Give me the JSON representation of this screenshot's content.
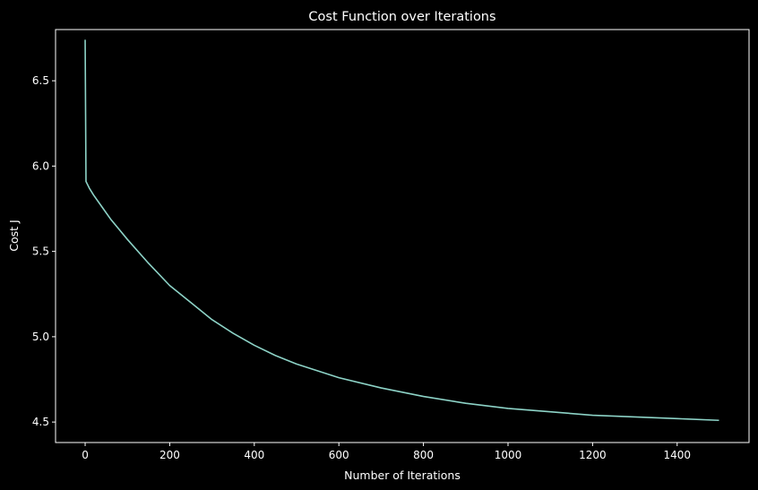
{
  "chart_data": {
    "type": "line",
    "title": "Cost Function over Iterations",
    "xlabel": "Number of Iterations",
    "ylabel": "Cost J",
    "xlim": [
      -70,
      1570
    ],
    "ylim": [
      4.38,
      6.8
    ],
    "x_ticks": [
      0,
      200,
      400,
      600,
      800,
      1000,
      1200,
      1400
    ],
    "x_tick_labels": [
      "0",
      "200",
      "400",
      "600",
      "800",
      "1000",
      "1200",
      "1400"
    ],
    "y_ticks": [
      4.5,
      5.0,
      5.5,
      6.0,
      6.5
    ],
    "y_tick_labels": [
      "4.5",
      "5.0",
      "5.5",
      "6.0",
      "6.5"
    ],
    "grid": false,
    "legend": false,
    "colors": {
      "background": "#000000",
      "axes": "#ffffff",
      "line": "#8dd3c7"
    },
    "series": [
      {
        "x": [
          0,
          2,
          4,
          10,
          20,
          40,
          60,
          80,
          100,
          150,
          200,
          250,
          300,
          350,
          400,
          450,
          500,
          600,
          700,
          800,
          900,
          1000,
          1100,
          1200,
          1300,
          1400,
          1499
        ],
        "y": [
          6.74,
          5.91,
          5.9,
          5.87,
          5.83,
          5.76,
          5.69,
          5.63,
          5.57,
          5.43,
          5.3,
          5.2,
          5.1,
          5.02,
          4.95,
          4.89,
          4.84,
          4.76,
          4.7,
          4.65,
          4.61,
          4.58,
          4.56,
          4.54,
          4.53,
          4.52,
          4.51
        ]
      }
    ]
  }
}
